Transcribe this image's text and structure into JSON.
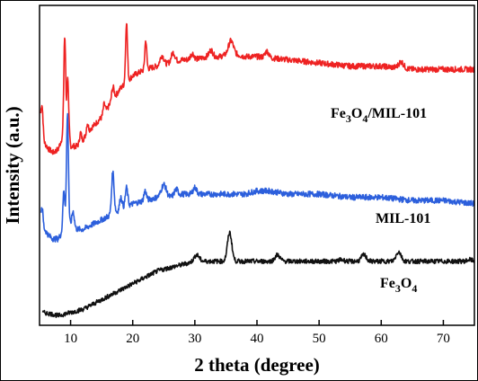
{
  "chart_data": {
    "type": "line",
    "title": "",
    "xlabel": "2 theta (degree)",
    "ylabel": "Intensity (a.u.)",
    "xlim": [
      5,
      75
    ],
    "xticks": [
      "10",
      "20",
      "30",
      "40",
      "50",
      "60",
      "70"
    ],
    "y_ticks_shown": false,
    "grid": false,
    "legend": "none (series labeled inline, right side)",
    "series": [
      {
        "name": "Fe3O4/MIL-101",
        "label_parts": [
          {
            "t": "Fe",
            "sub": false
          },
          {
            "t": "3",
            "sub": true
          },
          {
            "t": "O",
            "sub": false
          },
          {
            "t": "4",
            "sub": true
          },
          {
            "t": "/MIL-101",
            "sub": false
          }
        ],
        "color": "#ee2222",
        "noise": 0.0015,
        "points": [
          [
            5.2,
            0.63
          ],
          [
            5.8,
            0.57
          ],
          [
            6.5,
            0.55
          ],
          [
            7.2,
            0.54
          ],
          [
            8.0,
            0.55
          ],
          [
            8.7,
            0.59
          ],
          [
            9.0,
            0.75
          ],
          [
            9.3,
            0.62
          ],
          [
            9.5,
            0.7
          ],
          [
            9.7,
            0.59
          ],
          [
            10.0,
            0.56
          ],
          [
            11.0,
            0.56
          ],
          [
            12.0,
            0.58
          ],
          [
            13.0,
            0.61
          ],
          [
            14.0,
            0.63
          ],
          [
            15.0,
            0.65
          ],
          [
            16.0,
            0.68
          ],
          [
            17.0,
            0.71
          ],
          [
            18.0,
            0.74
          ],
          [
            19.0,
            0.76
          ],
          [
            20.0,
            0.78
          ],
          [
            22.0,
            0.8
          ],
          [
            24.0,
            0.81
          ],
          [
            26.0,
            0.82
          ],
          [
            28.0,
            0.83
          ],
          [
            30.0,
            0.83
          ],
          [
            32.0,
            0.84
          ],
          [
            34.0,
            0.84
          ],
          [
            36.0,
            0.85
          ],
          [
            38.0,
            0.84
          ],
          [
            40.0,
            0.84
          ],
          [
            45.0,
            0.83
          ],
          [
            50.0,
            0.82
          ],
          [
            55.0,
            0.81
          ],
          [
            60.0,
            0.81
          ],
          [
            65.0,
            0.8
          ],
          [
            70.0,
            0.8
          ],
          [
            75.0,
            0.8
          ]
        ],
        "peaks": [
          [
            5.4,
            0.08,
            0.15
          ],
          [
            9.1,
            0.18,
            0.15
          ],
          [
            9.6,
            0.1,
            0.15
          ],
          [
            11.6,
            0.03,
            0.15
          ],
          [
            12.7,
            0.03,
            0.15
          ],
          [
            15.4,
            0.03,
            0.15
          ],
          [
            16.8,
            0.04,
            0.2
          ],
          [
            19.0,
            0.19,
            0.15
          ],
          [
            22.1,
            0.09,
            0.15
          ],
          [
            24.7,
            0.03,
            0.3
          ],
          [
            26.5,
            0.03,
            0.3
          ],
          [
            29.6,
            0.02,
            0.3
          ],
          [
            32.6,
            0.02,
            0.3
          ],
          [
            35.8,
            0.04,
            0.4
          ],
          [
            41.6,
            0.02,
            0.3
          ],
          [
            63.2,
            0.02,
            0.4
          ]
        ]
      },
      {
        "name": "MIL-101",
        "label_parts": [
          {
            "t": "MIL-101",
            "sub": false
          }
        ],
        "color": "#2c5fdc",
        "noise": 0.0015,
        "points": [
          [
            5.2,
            0.33
          ],
          [
            5.8,
            0.3
          ],
          [
            6.5,
            0.28
          ],
          [
            7.2,
            0.27
          ],
          [
            8.0,
            0.27
          ],
          [
            8.6,
            0.29
          ],
          [
            9.0,
            0.33
          ],
          [
            9.5,
            0.34
          ],
          [
            10.0,
            0.31
          ],
          [
            11.0,
            0.3
          ],
          [
            12.0,
            0.3
          ],
          [
            13.0,
            0.31
          ],
          [
            14.0,
            0.32
          ],
          [
            15.0,
            0.33
          ],
          [
            16.0,
            0.34
          ],
          [
            17.0,
            0.35
          ],
          [
            18.0,
            0.36
          ],
          [
            19.0,
            0.37
          ],
          [
            20.0,
            0.38
          ],
          [
            22.0,
            0.39
          ],
          [
            24.0,
            0.4
          ],
          [
            26.0,
            0.4
          ],
          [
            28.0,
            0.41
          ],
          [
            30.0,
            0.41
          ],
          [
            32.0,
            0.41
          ],
          [
            34.0,
            0.41
          ],
          [
            36.0,
            0.41
          ],
          [
            38.0,
            0.41
          ],
          [
            40.0,
            0.42
          ],
          [
            42.0,
            0.42
          ],
          [
            45.0,
            0.41
          ],
          [
            50.0,
            0.41
          ],
          [
            55.0,
            0.4
          ],
          [
            60.0,
            0.4
          ],
          [
            65.0,
            0.39
          ],
          [
            70.0,
            0.39
          ],
          [
            75.0,
            0.38
          ]
        ],
        "peaks": [
          [
            5.4,
            0.05,
            0.15
          ],
          [
            8.9,
            0.1,
            0.15
          ],
          [
            9.5,
            0.32,
            0.15
          ],
          [
            10.4,
            0.05,
            0.2
          ],
          [
            16.8,
            0.13,
            0.2
          ],
          [
            18.1,
            0.04,
            0.2
          ],
          [
            19.0,
            0.06,
            0.2
          ],
          [
            22.0,
            0.03,
            0.2
          ],
          [
            25.0,
            0.04,
            0.4
          ],
          [
            27.0,
            0.02,
            0.3
          ],
          [
            30.0,
            0.02,
            0.3
          ]
        ]
      },
      {
        "name": "Fe3O4",
        "label_parts": [
          {
            "t": "Fe",
            "sub": false
          },
          {
            "t": "3",
            "sub": true
          },
          {
            "t": "O",
            "sub": false
          },
          {
            "t": "4",
            "sub": true
          }
        ],
        "color": "#111111",
        "noise": 0.0012,
        "points": [
          [
            5.5,
            0.04
          ],
          [
            7.0,
            0.035
          ],
          [
            8.0,
            0.03
          ],
          [
            10.0,
            0.04
          ],
          [
            12.0,
            0.05
          ],
          [
            14.0,
            0.07
          ],
          [
            16.0,
            0.09
          ],
          [
            18.0,
            0.11
          ],
          [
            20.0,
            0.13
          ],
          [
            22.0,
            0.15
          ],
          [
            24.0,
            0.17
          ],
          [
            26.0,
            0.18
          ],
          [
            28.0,
            0.19
          ],
          [
            30.0,
            0.2
          ],
          [
            32.0,
            0.2
          ],
          [
            34.0,
            0.2
          ],
          [
            36.0,
            0.2
          ],
          [
            38.0,
            0.2
          ],
          [
            40.0,
            0.2
          ],
          [
            45.0,
            0.2
          ],
          [
            50.0,
            0.2
          ],
          [
            55.0,
            0.2
          ],
          [
            60.0,
            0.2
          ],
          [
            65.0,
            0.2
          ],
          [
            70.0,
            0.2
          ],
          [
            75.0,
            0.2
          ]
        ],
        "peaks": [
          [
            30.3,
            0.02,
            0.4
          ],
          [
            35.6,
            0.09,
            0.35
          ],
          [
            43.3,
            0.02,
            0.4
          ],
          [
            53.6,
            0.005,
            0.4
          ],
          [
            57.2,
            0.02,
            0.4
          ],
          [
            62.8,
            0.03,
            0.4
          ],
          [
            74.2,
            0.005,
            0.4
          ]
        ]
      }
    ]
  }
}
